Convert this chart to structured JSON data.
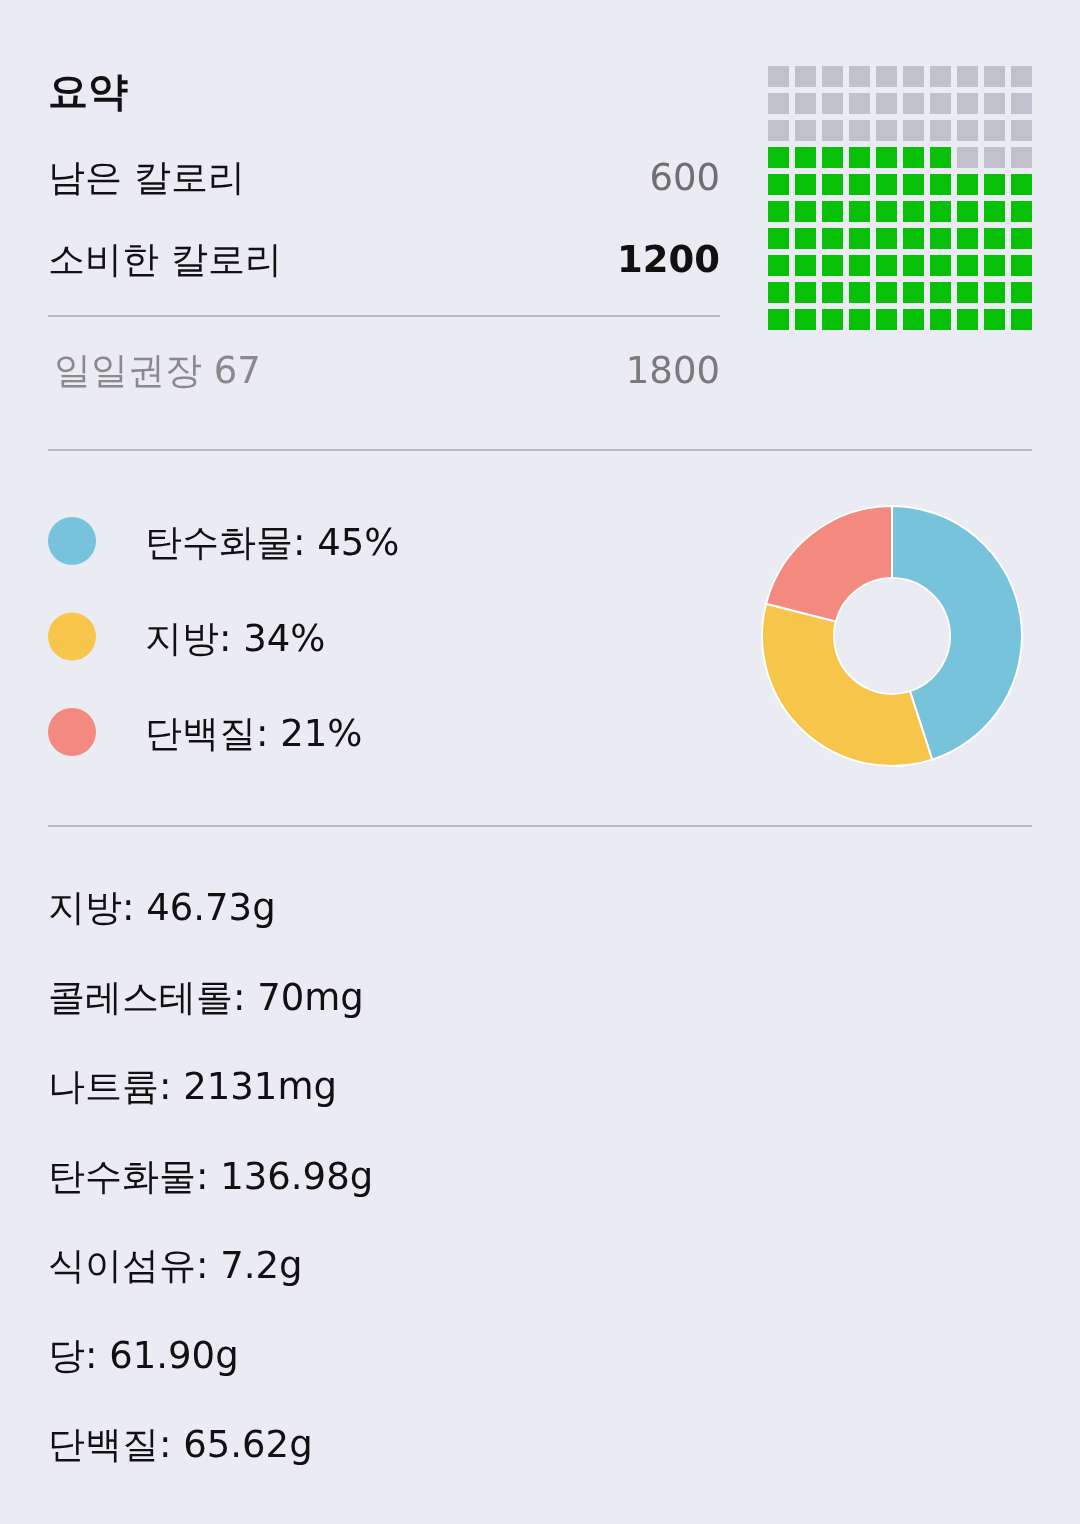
{
  "chart_data": [
    {
      "type": "other",
      "title": "요약",
      "categories": [
        "남은 칼로리",
        "소비한 칼로리"
      ],
      "values": [
        600,
        1200
      ],
      "colors": [
        "#c0c1cc",
        "#09c009"
      ],
      "data_labels": true,
      "totals": [
        "1800"
      ],
      "annotations": [
        "일일권장 67"
      ]
    },
    {
      "type": "donut",
      "categories": [
        "탄수화물: 45%",
        "지방: 34%",
        "단백질: 21%"
      ],
      "values": [
        45,
        34,
        21
      ],
      "colors": [
        "#77c3dc",
        "#f8c54b",
        "#f4897f"
      ],
      "legend": "left"
    },
    {
      "type": "other",
      "annotations": [
        "지방: 46.73g",
        "콜레스테롤: 70mg",
        "나트륨: 2131mg",
        "탄수화물: 136.98g",
        "식이섬유: 7.2g",
        "당: 61.90g",
        "단백질: 65.62g"
      ]
    }
  ]
}
